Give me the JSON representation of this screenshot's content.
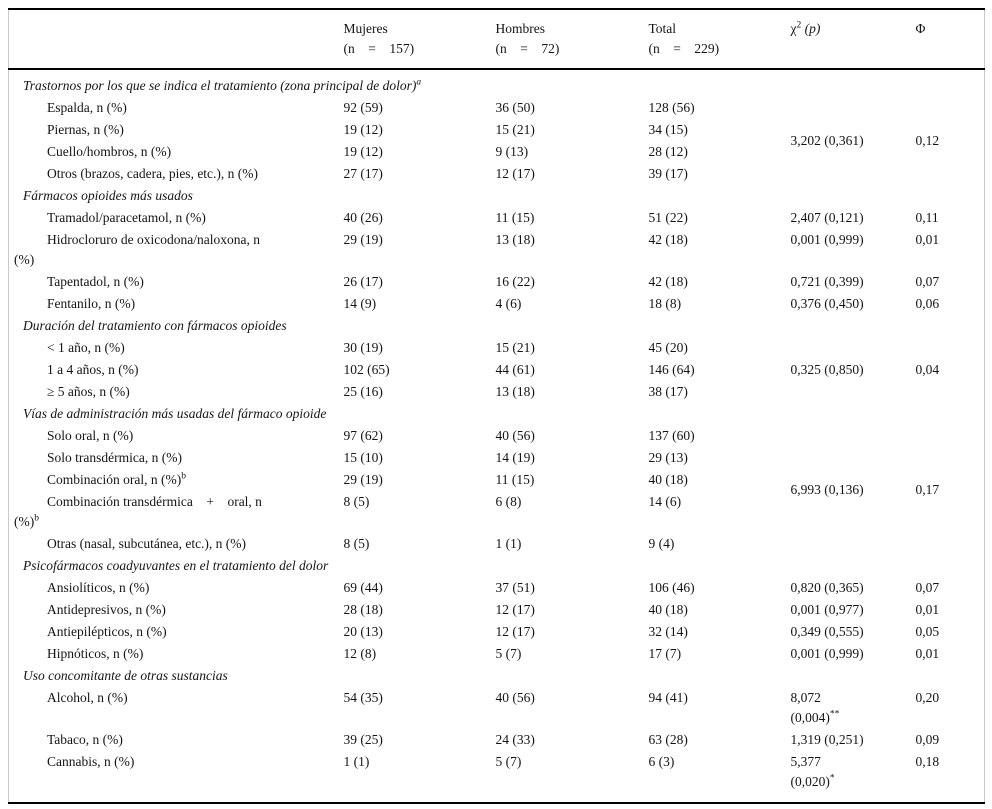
{
  "accent_colors": {
    "text": "#141414",
    "rule": "#000000",
    "side_rule": "#c9c9c9",
    "background": "#ffffff"
  },
  "header": {
    "corner": "",
    "groups": [
      {
        "label": "Mujeres",
        "sub": "(n = 157)"
      },
      {
        "label": "Hombres",
        "sub": "(n = 72)"
      },
      {
        "label": "Total",
        "sub": "(n = 229)"
      }
    ],
    "chi": {
      "base": "χ",
      "sup": "2",
      "arg": "(p)"
    },
    "phi": "Φ"
  },
  "table": {
    "sections": [
      {
        "title": "Trastornos por los que se indica el tratamiento (zona principal de dolor)",
        "title_sup": "a",
        "merged": {
          "chi": "3,202 (0,361)",
          "phi": "0,12"
        },
        "rows": [
          {
            "label": "Espalda, n (%)",
            "mujeres": "92 (59)",
            "hombres": "36 (50)",
            "total": "128 (56)"
          },
          {
            "label": "Piernas, n (%)",
            "mujeres": "19 (12)",
            "hombres": "15 (21)",
            "total": "34 (15)"
          },
          {
            "label": "Cuello/hombros, n (%)",
            "mujeres": "19 (12)",
            "hombres": "9 (13)",
            "total": "28 (12)"
          },
          {
            "label": "Otros (brazos, cadera, pies, etc.), n (%)",
            "mujeres": "27 (17)",
            "hombres": "12 (17)",
            "total": "39 (17)"
          }
        ]
      },
      {
        "title": "Fármacos opioides más usados",
        "rows": [
          {
            "label": "Tramadol/paracetamol, n (%)",
            "mujeres": "40 (26)",
            "hombres": "11 (15)",
            "total": "51 (22)",
            "chi": "2,407 (0,121)",
            "phi": "0,11"
          },
          {
            "label": "Hidrocloruro de oxicodona/naloxona, n",
            "label2": "(%)",
            "mujeres": "29 (19)",
            "hombres": "13 (18)",
            "total": "42 (18)",
            "chi": "0,001 (0,999)",
            "phi": "0,01"
          },
          {
            "label": "Tapentadol, n (%)",
            "mujeres": "26 (17)",
            "hombres": "16 (22)",
            "total": "42 (18)",
            "chi": "0,721 (0,399)",
            "phi": "0,07"
          },
          {
            "label": "Fentanilo, n (%)",
            "mujeres": "14 (9)",
            "hombres": "4 (6)",
            "total": "18 (8)",
            "chi": "0,376 (0,450)",
            "phi": "0,06"
          }
        ]
      },
      {
        "title": "Duración del tratamiento con fármacos opioides",
        "merged": {
          "chi": "0,325 (0,850)",
          "phi": "0,04"
        },
        "rows": [
          {
            "label": "< 1 año, n (%)",
            "mujeres": "30 (19)",
            "hombres": "15 (21)",
            "total": "45 (20)"
          },
          {
            "label": "1 a 4 años, n (%)",
            "mujeres": "102 (65)",
            "hombres": "44 (61)",
            "total": "146 (64)"
          },
          {
            "label": "≥ 5 años, n (%)",
            "mujeres": "25 (16)",
            "hombres": "13 (18)",
            "total": "38 (17)"
          }
        ]
      },
      {
        "title": "Vías de administración más usadas del fármaco opioide",
        "merged": {
          "chi": "6,993 (0,136)",
          "phi": "0,17"
        },
        "rows": [
          {
            "label": "Solo oral, n (%)",
            "mujeres": "97 (62)",
            "hombres": "40 (56)",
            "total": "137 (60)"
          },
          {
            "label": "Solo transdérmica, n (%)",
            "mujeres": "15 (10)",
            "hombres": "14 (19)",
            "total": "29 (13)"
          },
          {
            "label": "Combinación oral, n (%)",
            "label_sup": "b",
            "mujeres": "29 (19)",
            "hombres": "11 (15)",
            "total": "40 (18)"
          },
          {
            "label": "Combinación transdérmica + oral, n",
            "label2": "(%)",
            "label2_sup": "b",
            "mujeres": "8 (5)",
            "hombres": "6 (8)",
            "total": "14 (6)"
          },
          {
            "label": "Otras (nasal, subcutánea, etc.), n (%)",
            "mujeres": "8 (5)",
            "hombres": "1 (1)",
            "total": "9 (4)"
          }
        ]
      },
      {
        "title": "Psicofármacos coadyuvantes en el tratamiento del dolor",
        "rows": [
          {
            "label": "Ansiolíticos, n (%)",
            "mujeres": "69 (44)",
            "hombres": "37 (51)",
            "total": "106 (46)",
            "chi": "0,820 (0,365)",
            "phi": "0,07"
          },
          {
            "label": "Antidepresivos, n (%)",
            "mujeres": "28 (18)",
            "hombres": "12 (17)",
            "total": "40 (18)",
            "chi": "0,001 (0,977)",
            "phi": "0,01"
          },
          {
            "label": "Antiepilépticos, n (%)",
            "mujeres": "20 (13)",
            "hombres": "12 (17)",
            "total": "32 (14)",
            "chi": "0,349 (0,555)",
            "phi": "0,05"
          },
          {
            "label": "Hipnóticos, n (%)",
            "mujeres": "12 (8)",
            "hombres": "5 (7)",
            "total": "17 (7)",
            "chi": "0,001 (0,999)",
            "phi": "0,01"
          }
        ]
      },
      {
        "title": "Uso concomitante de otras sustancias",
        "rows": [
          {
            "label": "Alcohol, n (%)",
            "mujeres": "54 (35)",
            "hombres": "40 (56)",
            "total": "94 (41)",
            "chi": "8,072",
            "chi2": "(0,004)",
            "chi2_sup": "**",
            "phi": "0,20"
          },
          {
            "label": "Tabaco, n (%)",
            "mujeres": "39 (25)",
            "hombres": "24 (33)",
            "total": "63 (28)",
            "chi": "1,319 (0,251)",
            "phi": "0,09"
          },
          {
            "label": "Cannabis, n (%)",
            "mujeres": "1 (1)",
            "hombres": "5 (7)",
            "total": "6 (3)",
            "chi": "5,377",
            "chi2": "(0,020)",
            "chi2_sup": "*",
            "phi": "0,18"
          }
        ]
      }
    ]
  }
}
